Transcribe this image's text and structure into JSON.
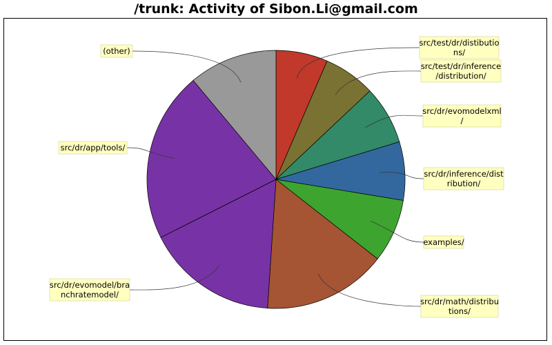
{
  "chart_data": {
    "type": "pie",
    "title": "/trunk: Activity of Sibon.Li@gmail.com",
    "slices": [
      {
        "label": "src/test/dr/distibutions/",
        "value": 6.2,
        "color": "#c0392b"
      },
      {
        "label": "src/test/dr/inference/distribution/",
        "value": 6.2,
        "color": "#7a7232"
      },
      {
        "label": "src/dr/evomodelxml/",
        "value": 7.0,
        "color": "#328a68"
      },
      {
        "label": "src/dr/inference/distribution/",
        "value": 7.0,
        "color": "#33689e"
      },
      {
        "label": "examples/",
        "value": 7.6,
        "color": "#3ea430"
      },
      {
        "label": "src/dr/math/distributions/",
        "value": 14.8,
        "color": "#a55434"
      },
      {
        "label": "src/dr/evomodel/branchratemodel/",
        "value": 15.8,
        "color": "#7733a5"
      },
      {
        "label": "src/dr/app/tools/",
        "value": 20.4,
        "color": "#7733a5"
      },
      {
        "label": "(other)",
        "value": 10.6,
        "color": "#999999"
      }
    ]
  }
}
